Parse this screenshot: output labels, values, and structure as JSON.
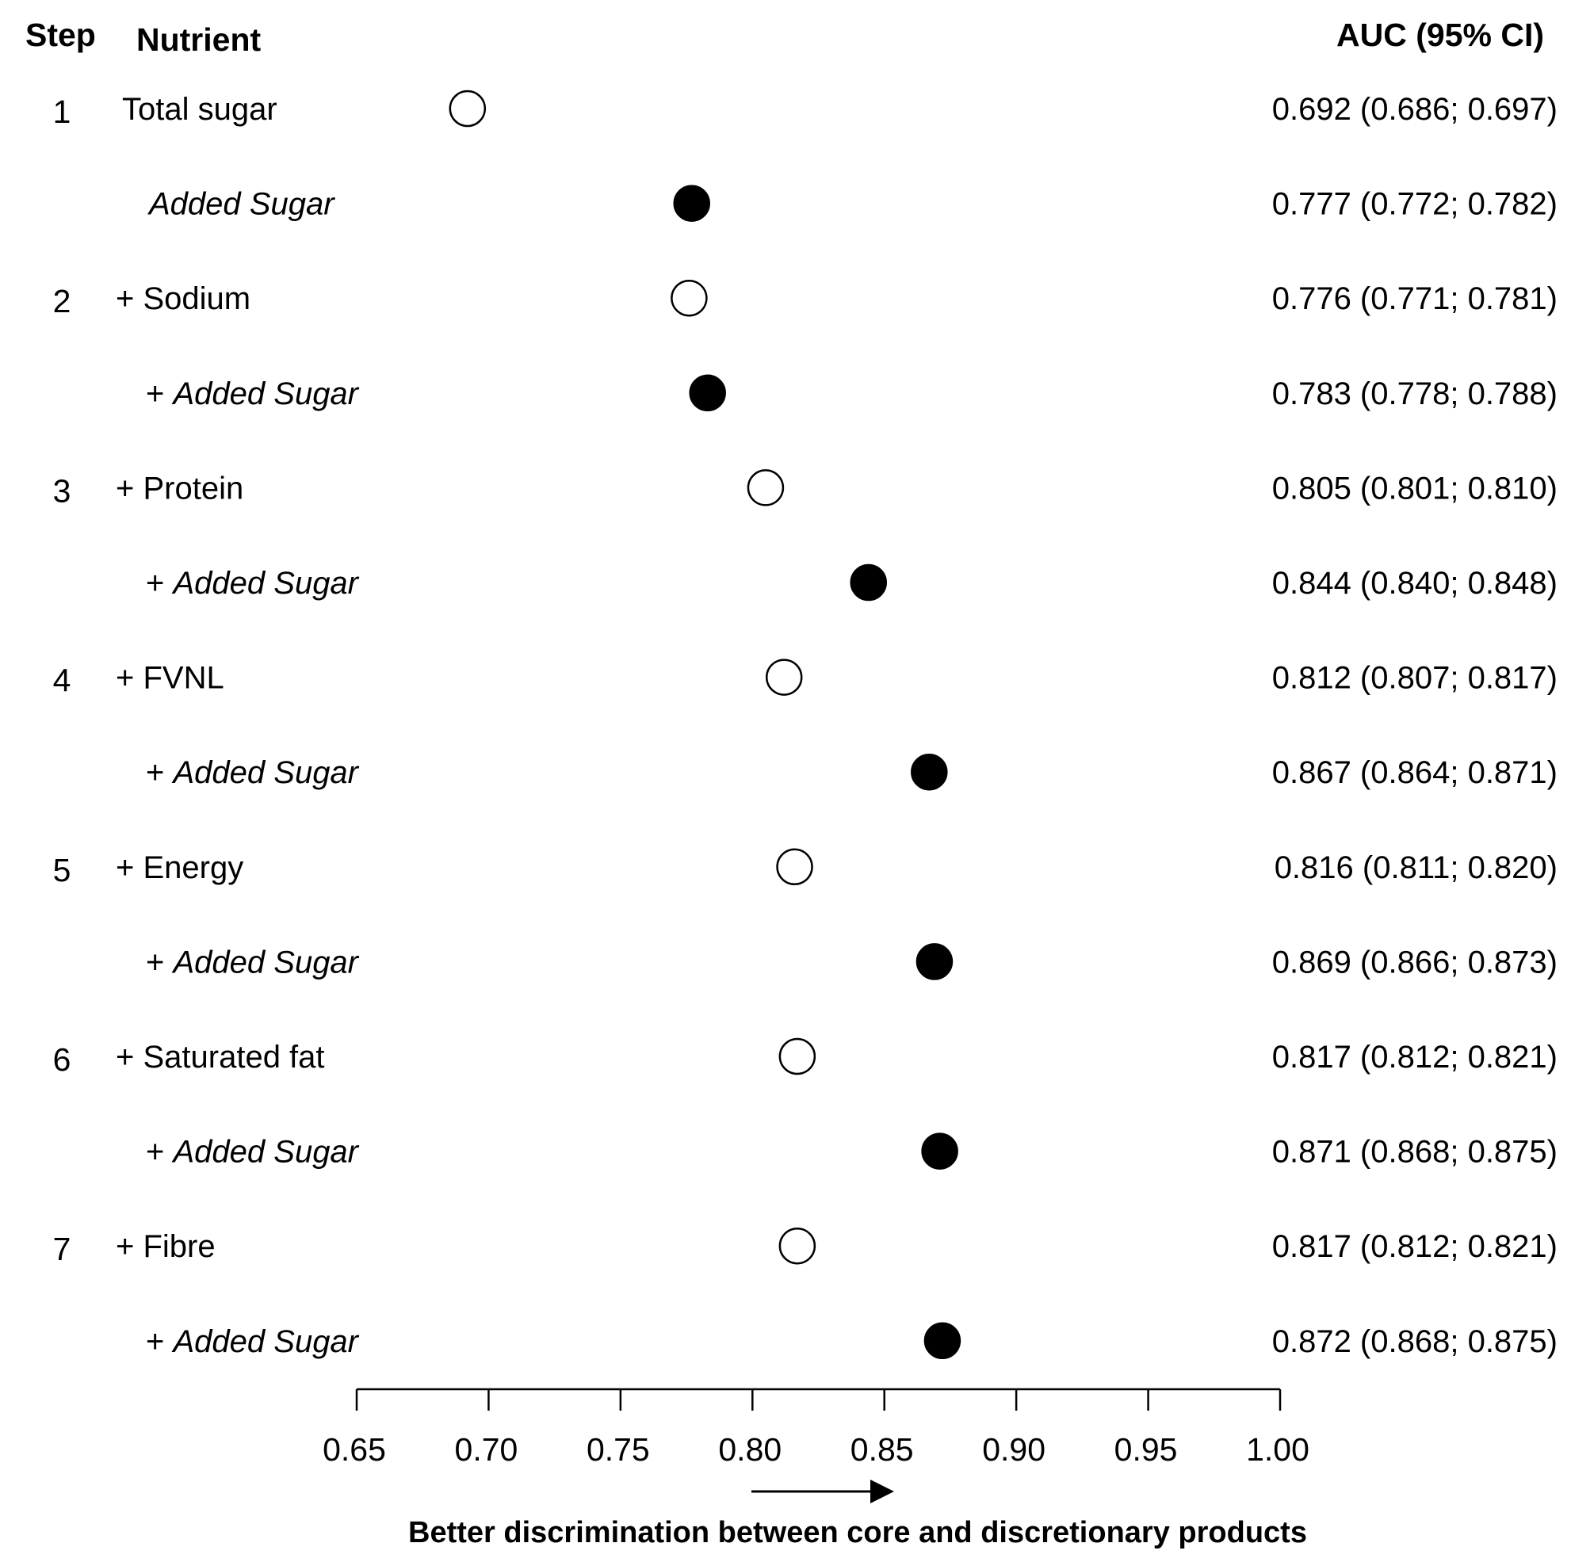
{
  "chart_data": {
    "type": "scatter",
    "headers": {
      "step": "Step",
      "nutrient": "Nutrient",
      "auc": "AUC (95% CI)"
    },
    "xlabel": "Better discrimination between core and discretionary products",
    "xlim": [
      0.65,
      1.0
    ],
    "xticks": [
      "0.65",
      "0.70",
      "0.75",
      "0.80",
      "0.85",
      "0.90",
      "0.95",
      "1.00"
    ],
    "grid": false,
    "legend": "none",
    "rows": [
      {
        "step": "1",
        "prefix": "",
        "nutrient": "Total sugar",
        "added": false,
        "auc": 0.692,
        "ci_text": "0.692 (0.686; 0.697)"
      },
      {
        "step": "",
        "prefix": "",
        "nutrient": "Added Sugar",
        "added": true,
        "auc": 0.777,
        "ci_text": "0.777 (0.772; 0.782)"
      },
      {
        "step": "2",
        "prefix": "+ ",
        "nutrient": "Sodium",
        "added": false,
        "auc": 0.776,
        "ci_text": "0.776 (0.771; 0.781)"
      },
      {
        "step": "",
        "prefix": "+ ",
        "nutrient": "Added Sugar",
        "added": true,
        "auc": 0.783,
        "ci_text": "0.783 (0.778; 0.788)"
      },
      {
        "step": "3",
        "prefix": "+ ",
        "nutrient": "Protein",
        "added": false,
        "auc": 0.805,
        "ci_text": "0.805 (0.801; 0.810)"
      },
      {
        "step": "",
        "prefix": "+ ",
        "nutrient": "Added Sugar",
        "added": true,
        "auc": 0.844,
        "ci_text": "0.844 (0.840; 0.848)"
      },
      {
        "step": "4",
        "prefix": "+ ",
        "nutrient": "FVNL",
        "added": false,
        "auc": 0.812,
        "ci_text": "0.812 (0.807; 0.817)"
      },
      {
        "step": "",
        "prefix": "+ ",
        "nutrient": "Added Sugar",
        "added": true,
        "auc": 0.867,
        "ci_text": "0.867 (0.864; 0.871)"
      },
      {
        "step": "5",
        "prefix": "+ ",
        "nutrient": "Energy",
        "added": false,
        "auc": 0.816,
        "ci_text": "0.816 (0.811; 0.820)"
      },
      {
        "step": "",
        "prefix": "+ ",
        "nutrient": "Added Sugar",
        "added": true,
        "auc": 0.869,
        "ci_text": "0.869 (0.866; 0.873)"
      },
      {
        "step": "6",
        "prefix": "+ ",
        "nutrient": "Saturated fat",
        "added": false,
        "auc": 0.817,
        "ci_text": "0.817 (0.812; 0.821)"
      },
      {
        "step": "",
        "prefix": "+ ",
        "nutrient": "Added Sugar",
        "added": true,
        "auc": 0.871,
        "ci_text": "0.871 (0.868; 0.875)"
      },
      {
        "step": "7",
        "prefix": "+ ",
        "nutrient": "Fibre",
        "added": false,
        "auc": 0.817,
        "ci_text": "0.817 (0.812; 0.821)"
      },
      {
        "step": "",
        "prefix": "+ ",
        "nutrient": "Added Sugar",
        "added": true,
        "auc": 0.872,
        "ci_text": "0.872 (0.868; 0.875)"
      }
    ]
  }
}
